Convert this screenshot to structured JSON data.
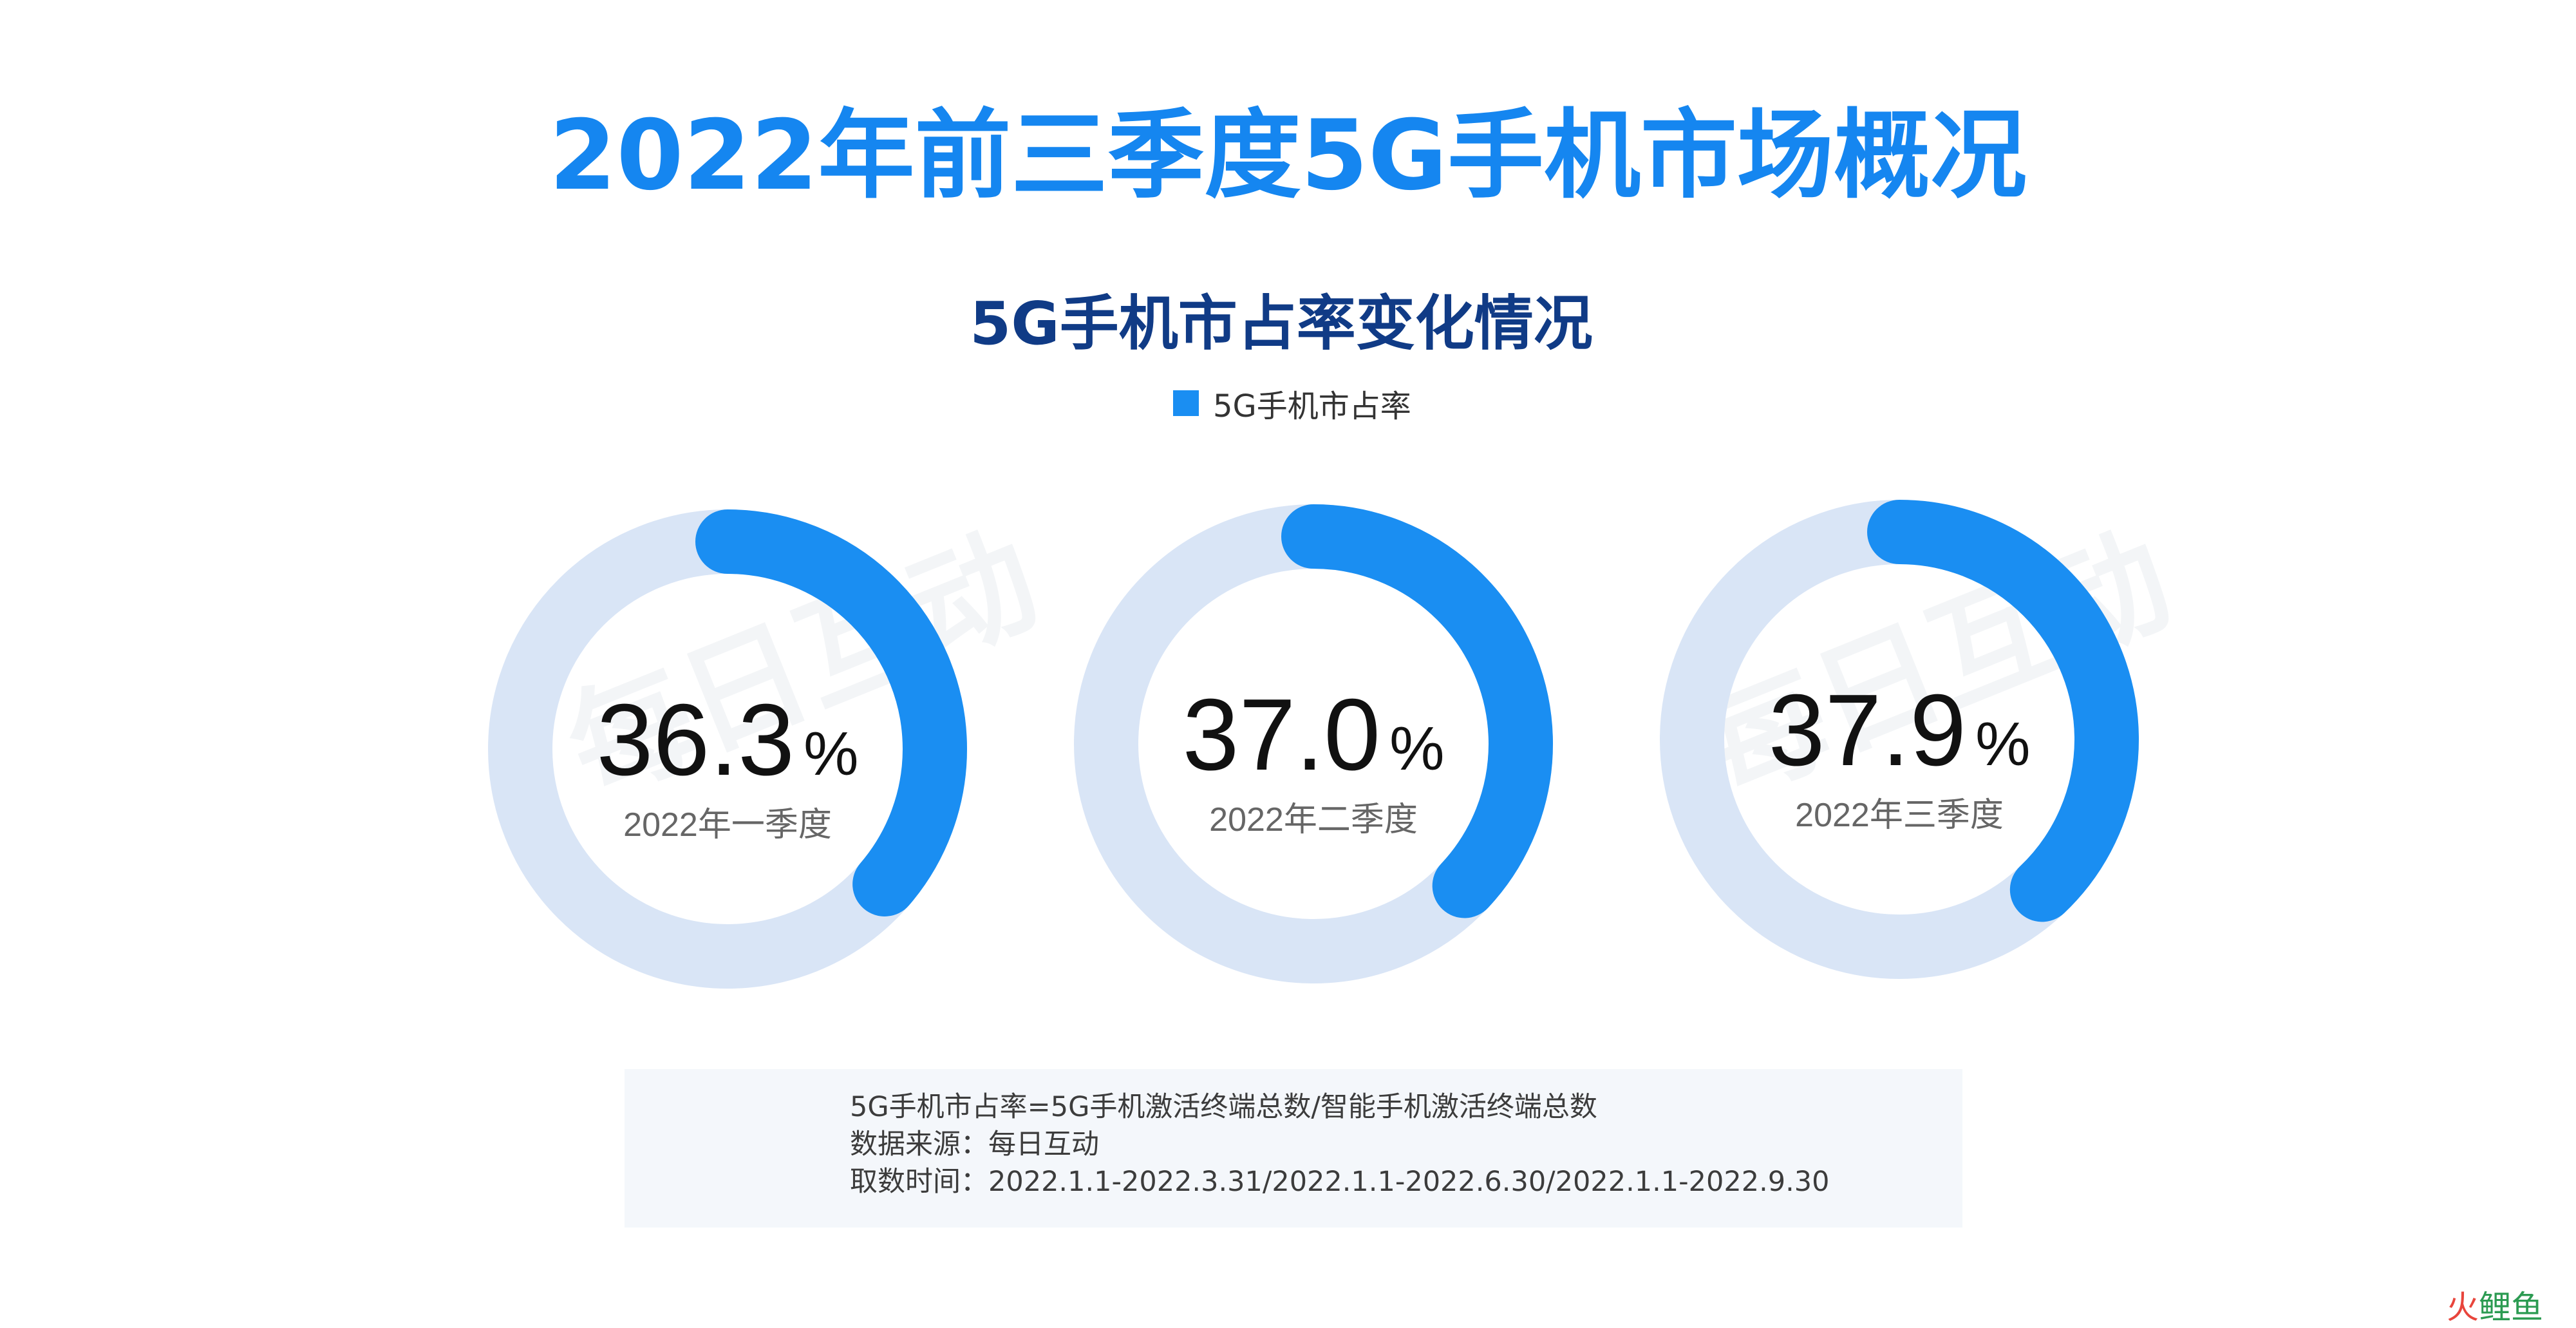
{
  "header": {
    "main_title": "2022年前三季度5G手机市场概况"
  },
  "chart_data": {
    "type": "pie",
    "title": "5G手机市占率变化情况",
    "legend": {
      "label": "5G手机市占率",
      "placement": "top"
    },
    "series_color": "#1a8ef2",
    "track_color": "#d9e5f6",
    "max": 100,
    "items": [
      {
        "label": "2022年一季度",
        "value": 36.3,
        "value_text": "36.3",
        "unit": "%"
      },
      {
        "label": "2022年二季度",
        "value": 37.0,
        "value_text": "37.0",
        "unit": "%"
      },
      {
        "label": "2022年三季度",
        "value": 37.9,
        "value_text": "37.9",
        "unit": "%"
      }
    ]
  },
  "notes": {
    "lines": [
      "5G手机市占率=5G手机激活终端总数/智能手机激活终端总数",
      "数据来源：每日互动",
      "取数时间：2022.1.1-2022.3.31/2022.1.1-2022.6.30/2022.1.1-2022.9.30"
    ]
  },
  "watermark": {
    "text": "每日互动"
  },
  "source_mark": {
    "part_a": "火",
    "part_b": "鲤鱼"
  }
}
